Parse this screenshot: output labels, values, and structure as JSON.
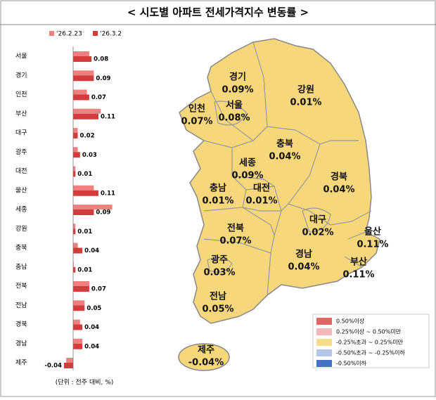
{
  "chart_data": {
    "type": "bar",
    "orientation": "horizontal",
    "title": "< 시도별 아파트 전세가격지수 변동률 >",
    "categories": [
      "서울",
      "경기",
      "인천",
      "부산",
      "대구",
      "광주",
      "대전",
      "울산",
      "세종",
      "강원",
      "충북",
      "충남",
      "전북",
      "전남",
      "경북",
      "경남",
      "제주"
    ],
    "series": [
      {
        "name": "'26.2.23",
        "color": "#f08080",
        "values": [
          0.07,
          0.09,
          0.06,
          0.12,
          0.02,
          0.02,
          0.01,
          0.09,
          0.17,
          0.01,
          0.02,
          0.0,
          0.07,
          0.05,
          0.03,
          0.04,
          -0.03
        ]
      },
      {
        "name": "'26.3.2",
        "color": "#d23c3c",
        "values": [
          0.08,
          0.09,
          0.07,
          0.11,
          0.02,
          0.03,
          0.01,
          0.11,
          0.09,
          0.01,
          0.04,
          0.01,
          0.07,
          0.05,
          0.04,
          0.04,
          -0.04
        ]
      }
    ],
    "xlim": [
      -0.1,
      0.17
    ],
    "note": "(단위 : 전주 대비, %)"
  },
  "map": {
    "color": "#f7d77b",
    "regions": [
      {
        "name": "경기",
        "label": "0.09%"
      },
      {
        "name": "강원",
        "label": "0.01%"
      },
      {
        "name": "인천",
        "label": "0.07%"
      },
      {
        "name": "서울",
        "label": "0.08%"
      },
      {
        "name": "충북",
        "label": "0.04%"
      },
      {
        "name": "세종",
        "label": "0.09%"
      },
      {
        "name": "경북",
        "label": "0.04%"
      },
      {
        "name": "충남",
        "label": "0.01%"
      },
      {
        "name": "대전",
        "label": "0.01%"
      },
      {
        "name": "대구",
        "label": "0.02%"
      },
      {
        "name": "울산",
        "label": "0.11%"
      },
      {
        "name": "전북",
        "label": "0.07%"
      },
      {
        "name": "광주",
        "label": "0.03%"
      },
      {
        "name": "경남",
        "label": "0.04%"
      },
      {
        "name": "부산",
        "label": "0.11%"
      },
      {
        "name": "전남",
        "label": "0.05%"
      },
      {
        "name": "제주",
        "label": "-0.04%"
      }
    ],
    "legend": [
      {
        "label": "0.50%이상",
        "color": "#e06666"
      },
      {
        "label": "0.25%이상 ~ 0.50%미만",
        "color": "#f4b6b6"
      },
      {
        "label": "-0.25%초과 ~ 0.25%미만",
        "color": "#f7dc8a"
      },
      {
        "label": "-0.50%초과 ~ -0.25%이하",
        "color": "#b4c6e7"
      },
      {
        "label": "-0.50%이하",
        "color": "#4472c4"
      }
    ]
  }
}
